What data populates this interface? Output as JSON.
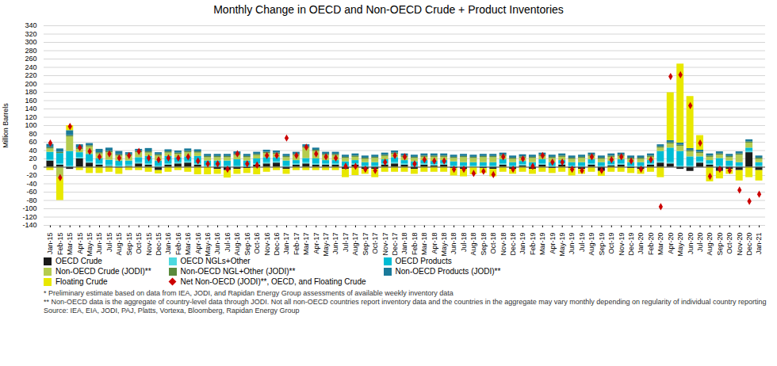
{
  "chart_data": {
    "type": "bar",
    "stacked": true,
    "title": "Monthly Change in OECD and Non-OECD Crude + Product Inventories",
    "ylabel": "Million Barrels",
    "ylim": [
      -140,
      340
    ],
    "yticks": [
      -140,
      -120,
      -100,
      -80,
      -60,
      -40,
      -20,
      0,
      20,
      40,
      60,
      80,
      100,
      120,
      140,
      160,
      180,
      200,
      220,
      240,
      260,
      280,
      300,
      320,
      340
    ],
    "grid": true,
    "legend": "bottom",
    "annotations": [
      "* Preliminary estimate based on data from IEA, JODI, and Rapidan Energy Group assessments of available weekly inventory data",
      "** Non-OECD data is the aggregate of country-level data through JODI. Not all non-OECD countries report inventory data and the countries in the aggregate may vary monthly depending on regularity of individual country reporting",
      "Source: IEA, EIA, JODI, PAJ, Platts, Vortexa, Bloomberg, Rapidan Energy Group"
    ],
    "categories": [
      "Jan-15",
      "Feb-15",
      "Mar-15",
      "Apr-15",
      "May-15",
      "Jun-15",
      "Jul-15",
      "Aug-15",
      "Sep-15",
      "Oct-15",
      "Nov-15",
      "Dec-15",
      "Jan-16",
      "Feb-16",
      "Mar-16",
      "Apr-16",
      "May-16",
      "Jun-16",
      "Jul-16",
      "Aug-16",
      "Sep-16",
      "Oct-16",
      "Nov-16",
      "Dec-16",
      "Jan-17",
      "Feb-17",
      "Mar-17",
      "Apr-17",
      "May-17",
      "Jun-17",
      "Jul-17",
      "Aug-17",
      "Sep-17",
      "Oct-17",
      "Nov-17",
      "Dec-17",
      "Jan-18",
      "Feb-18",
      "Mar-18",
      "Apr-18",
      "May-18",
      "Jun-18",
      "Jul-18",
      "Aug-18",
      "Sep-18",
      "Oct-18",
      "Nov-18",
      "Dec-18",
      "Jan-19",
      "Feb-19",
      "Mar-19",
      "Apr-19",
      "May-19",
      "Jun-19",
      "Jul-19",
      "Aug-19",
      "Sep-19",
      "Oct-19",
      "Nov-19",
      "Dec-19",
      "Jan-20",
      "Feb-20",
      "Mar-20",
      "Apr-20",
      "May-20",
      "Jun-20",
      "Jul-20",
      "Aug-20",
      "Sep-20",
      "Oct-20",
      "Nov-20",
      "Dec-20",
      "Jan-21"
    ],
    "series": [
      {
        "name": "OECD Crude",
        "color": "#1a1a1a",
        "values": [
          15,
          5,
          -5,
          20,
          10,
          5,
          2,
          -2,
          2,
          8,
          5,
          -8,
          5,
          8,
          10,
          5,
          0,
          -5,
          -8,
          -5,
          -3,
          5,
          8,
          10,
          -5,
          5,
          8,
          5,
          5,
          5,
          -5,
          5,
          -5,
          -5,
          5,
          8,
          5,
          -5,
          5,
          3,
          5,
          -3,
          -5,
          0,
          -3,
          -5,
          5,
          -5,
          3,
          -5,
          5,
          -3,
          5,
          -3,
          -5,
          5,
          -10,
          3,
          5,
          -3,
          -5,
          5,
          10,
          8,
          -5,
          -10,
          10,
          5,
          -10,
          -5,
          -8,
          35,
          -8
        ]
      },
      {
        "name": "OECD NGLs+Other",
        "color": "#4dd9e0",
        "values": [
          3,
          3,
          3,
          3,
          3,
          3,
          3,
          3,
          3,
          3,
          3,
          3,
          3,
          3,
          3,
          3,
          3,
          3,
          3,
          3,
          3,
          3,
          3,
          3,
          3,
          3,
          3,
          3,
          3,
          3,
          3,
          3,
          3,
          3,
          3,
          3,
          3,
          3,
          3,
          3,
          3,
          3,
          3,
          3,
          3,
          3,
          3,
          3,
          3,
          3,
          3,
          3,
          3,
          3,
          3,
          3,
          3,
          3,
          3,
          3,
          3,
          3,
          3,
          3,
          3,
          3,
          3,
          3,
          3,
          3,
          3,
          3,
          3
        ]
      },
      {
        "name": "OECD Products",
        "color": "#00bcd4",
        "values": [
          18,
          25,
          35,
          12,
          18,
          12,
          12,
          12,
          10,
          12,
          18,
          12,
          18,
          12,
          12,
          18,
          12,
          12,
          12,
          15,
          12,
          12,
          12,
          10,
          12,
          8,
          10,
          12,
          8,
          8,
          10,
          8,
          8,
          8,
          10,
          12,
          8,
          10,
          8,
          8,
          8,
          10,
          8,
          8,
          8,
          8,
          10,
          8,
          8,
          8,
          10,
          8,
          8,
          8,
          8,
          10,
          8,
          8,
          10,
          8,
          8,
          8,
          25,
          35,
          35,
          22,
          12,
          8,
          18,
          12,
          8,
          8,
          8
        ]
      },
      {
        "name": "Non-OECD Crude (JODI)**",
        "color": "#b5cc4f",
        "values": [
          8,
          -25,
          35,
          8,
          18,
          12,
          18,
          12,
          12,
          12,
          8,
          12,
          8,
          8,
          10,
          8,
          8,
          8,
          8,
          10,
          8,
          8,
          10,
          8,
          8,
          12,
          25,
          18,
          12,
          12,
          8,
          8,
          8,
          10,
          8,
          8,
          8,
          8,
          8,
          10,
          8,
          8,
          12,
          10,
          12,
          12,
          8,
          8,
          8,
          10,
          8,
          10,
          8,
          8,
          10,
          8,
          8,
          10,
          8,
          8,
          8,
          8,
          8,
          10,
          12,
          12,
          8,
          8,
          8,
          8,
          18,
          12,
          8
        ]
      },
      {
        "name": "Non-OECD NGL+Other (JODI)**",
        "color": "#5a8a3c",
        "values": [
          3,
          3,
          3,
          3,
          3,
          3,
          3,
          3,
          3,
          3,
          3,
          3,
          3,
          3,
          3,
          3,
          3,
          3,
          3,
          3,
          3,
          3,
          3,
          3,
          3,
          3,
          3,
          3,
          3,
          3,
          3,
          3,
          3,
          3,
          3,
          3,
          3,
          3,
          3,
          3,
          3,
          3,
          3,
          3,
          3,
          3,
          3,
          3,
          3,
          3,
          3,
          3,
          3,
          3,
          3,
          3,
          3,
          3,
          3,
          3,
          3,
          3,
          3,
          3,
          3,
          3,
          3,
          3,
          3,
          3,
          3,
          3,
          3
        ]
      },
      {
        "name": "Non-OECD Products (JODI)**",
        "color": "#1a7a9a",
        "values": [
          8,
          8,
          12,
          8,
          5,
          8,
          8,
          8,
          5,
          5,
          8,
          5,
          5,
          5,
          6,
          5,
          5,
          5,
          5,
          6,
          5,
          5,
          5,
          5,
          5,
          5,
          5,
          5,
          5,
          5,
          5,
          5,
          5,
          5,
          5,
          5,
          5,
          5,
          5,
          5,
          5,
          5,
          5,
          5,
          5,
          5,
          5,
          5,
          5,
          5,
          5,
          5,
          5,
          5,
          5,
          5,
          5,
          5,
          5,
          5,
          5,
          5,
          5,
          5,
          5,
          5,
          5,
          5,
          5,
          5,
          5,
          5,
          5
        ]
      },
      {
        "name": "Floating Crude",
        "color": "#e8e800",
        "values": [
          -8,
          -55,
          12,
          -8,
          -15,
          -15,
          -12,
          -15,
          -8,
          -8,
          -12,
          -8,
          -12,
          -8,
          -12,
          -18,
          -18,
          -12,
          -18,
          -12,
          -12,
          -18,
          -12,
          -8,
          -12,
          -8,
          -8,
          -8,
          -8,
          -8,
          -20,
          -20,
          -12,
          -20,
          -12,
          -12,
          -12,
          -12,
          -12,
          -12,
          -12,
          -18,
          -18,
          -18,
          -12,
          -18,
          -12,
          -12,
          -12,
          -12,
          -12,
          -12,
          -12,
          -18,
          -12,
          -12,
          -12,
          -12,
          -12,
          -12,
          -12,
          -12,
          -25,
          115,
          190,
          125,
          35,
          -35,
          -18,
          -12,
          -25,
          -25,
          -25
        ]
      },
      {
        "name": "Net Non-OECD (JODI)**, OECD, and Floating Crude",
        "type": "scatter",
        "marker": "diamond",
        "color": "#cc0000",
        "values": [
          58,
          -25,
          98,
          47,
          38,
          25,
          32,
          22,
          28,
          38,
          22,
          18,
          22,
          22,
          25,
          15,
          8,
          8,
          -5,
          32,
          8,
          5,
          28,
          28,
          70,
          28,
          48,
          32,
          25,
          22,
          2,
          2,
          -5,
          -8,
          12,
          28,
          25,
          8,
          18,
          15,
          15,
          -5,
          -5,
          -15,
          -10,
          -18,
          25,
          -5,
          20,
          2,
          28,
          12,
          12,
          -5,
          -8,
          25,
          -8,
          18,
          25,
          15,
          -5,
          18,
          -95,
          218,
          222,
          148,
          58,
          -22,
          -5,
          -8,
          -55,
          -82,
          -65
        ]
      }
    ]
  }
}
